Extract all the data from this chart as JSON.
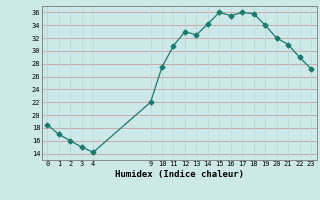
{
  "x": [
    0,
    1,
    2,
    3,
    4,
    9,
    10,
    11,
    12,
    13,
    14,
    15,
    16,
    17,
    18,
    19,
    20,
    21,
    22,
    23
  ],
  "y": [
    18.5,
    17.0,
    16.0,
    15.0,
    14.2,
    22.0,
    27.5,
    30.8,
    33.0,
    32.5,
    34.2,
    36.0,
    35.5,
    36.0,
    35.8,
    34.0,
    32.0,
    31.0,
    29.0,
    27.2
  ],
  "xlim": [
    -0.5,
    23.5
  ],
  "ylim": [
    13,
    37
  ],
  "yticks": [
    14,
    16,
    18,
    20,
    22,
    24,
    26,
    28,
    30,
    32,
    34,
    36
  ],
  "xticks": [
    0,
    1,
    2,
    3,
    4,
    9,
    10,
    11,
    12,
    13,
    14,
    15,
    16,
    17,
    18,
    19,
    20,
    21,
    22,
    23
  ],
  "xlabel": "Humidex (Indice chaleur)",
  "line_color": "#1a7a6e",
  "marker": "D",
  "marker_size": 2.5,
  "bg_color": "#cce8e8",
  "grid_h_color": "#c8a0a0",
  "grid_v_color": "#b8d8d8"
}
